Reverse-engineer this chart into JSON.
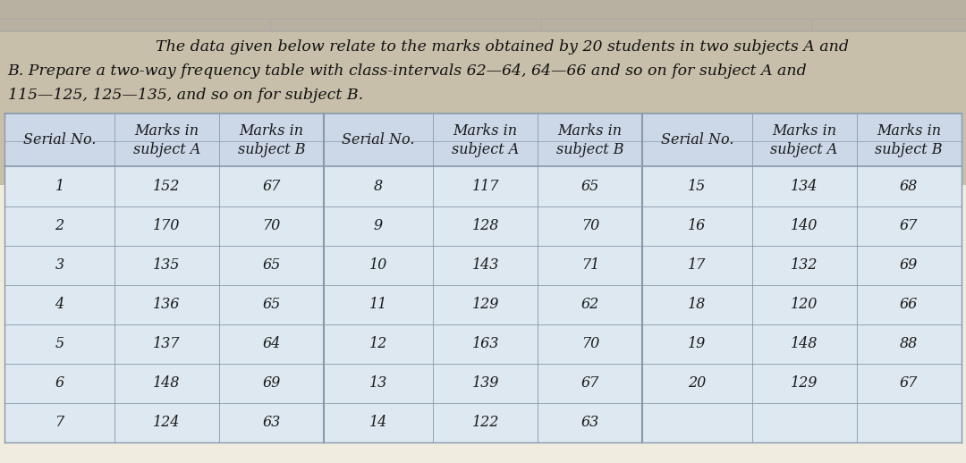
{
  "title_line1": "    The data given below relate to the marks obtained by 20 students in two subjects A and",
  "title_line2": "B. Prepare a two-way frequency table with class-intervals 62—64, 64—66 and so on for subject A and",
  "title_line3": "115—125, 125—135, and so on for subject B.",
  "headers": [
    "Serial No.",
    "Marks in\nsubject A",
    "Marks in\nsubject B",
    "Serial No.",
    "Marks in\nsubject A",
    "Marks in\nsubject B",
    "Serial No.",
    "Marks in\nsubject A",
    "Marks in\nsubject B"
  ],
  "data_rows": [
    [
      "1",
      "152",
      "67",
      "8",
      "117",
      "65",
      "15",
      "134",
      "68"
    ],
    [
      "2",
      "170",
      "70",
      "9",
      "128",
      "70",
      "16",
      "140",
      "67"
    ],
    [
      "3",
      "135",
      "65",
      "10",
      "143",
      "71",
      "17",
      "132",
      "69"
    ],
    [
      "4",
      "136",
      "65",
      "11",
      "129",
      "62",
      "18",
      "120",
      "66"
    ],
    [
      "5",
      "137",
      "64",
      "12",
      "163",
      "70",
      "19",
      "148",
      "88"
    ],
    [
      "6",
      "148",
      "69",
      "13",
      "139",
      "67",
      "20",
      "129",
      "67"
    ],
    [
      "7",
      "124",
      "63",
      "14",
      "122",
      "63",
      "",
      "",
      ""
    ]
  ],
  "page_bg": "#c8bfaa",
  "top_strip_bg": "#c8bfaa",
  "table_bg": "#dde8f0",
  "header_bg": "#ccd8e8",
  "bottom_bg": "#f0ece0",
  "line_color": "#8899aa",
  "text_color": "#1a1a1a",
  "title_color": "#111111",
  "font_size_title": 12.5,
  "font_size_table": 11.5,
  "col_props": [
    0.092,
    0.088,
    0.088,
    0.092,
    0.088,
    0.088,
    0.092,
    0.088,
    0.088
  ]
}
